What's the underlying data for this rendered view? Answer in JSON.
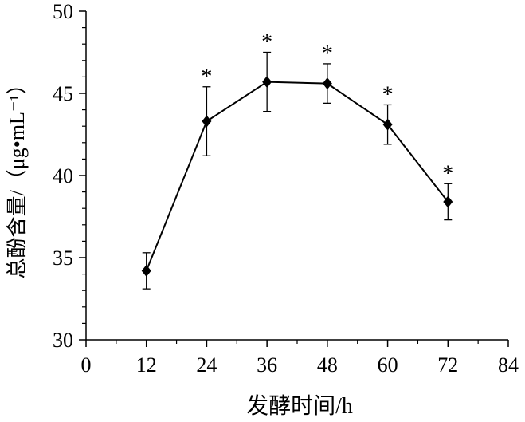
{
  "chart_data": {
    "type": "line",
    "title": "",
    "xlabel": "发酵时间/h",
    "ylabel": "总酚含量/（μg•mL⁻¹）",
    "xlim": [
      0,
      84
    ],
    "ylim": [
      30,
      50
    ],
    "xticks": [
      0,
      12,
      24,
      36,
      48,
      60,
      72,
      84
    ],
    "yticks": [
      30,
      35,
      40,
      45,
      50
    ],
    "xtick_labels": [
      "0",
      "12",
      "24",
      "36",
      "48",
      "60",
      "72",
      "84"
    ],
    "ytick_labels": [
      "30",
      "35",
      "40",
      "45",
      "50"
    ],
    "grid": false,
    "legend": "none",
    "series": [
      {
        "x": [
          12,
          24,
          36,
          48,
          60,
          72
        ],
        "y": [
          34.2,
          43.3,
          45.7,
          45.6,
          43.1,
          38.4
        ],
        "error": [
          1.1,
          2.1,
          1.8,
          1.2,
          1.2,
          1.1
        ],
        "significance": [
          "",
          "*",
          "*",
          "*",
          "*",
          "*"
        ],
        "color": "#000000",
        "marker": "diamond"
      }
    ]
  }
}
